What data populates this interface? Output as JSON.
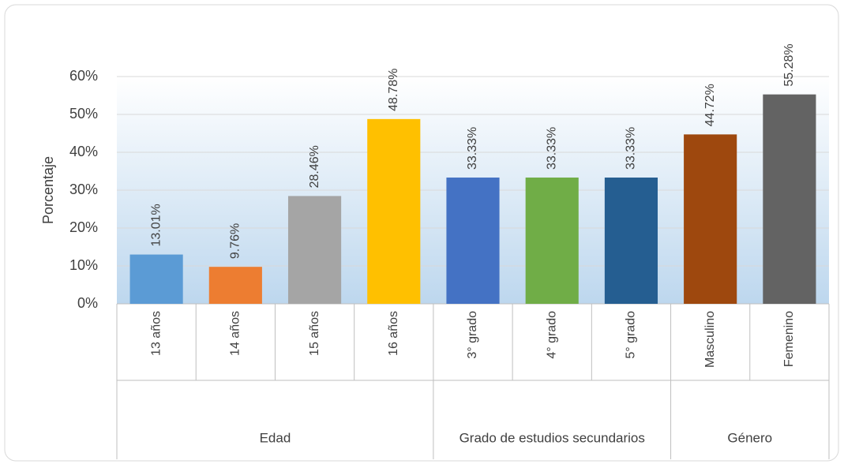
{
  "chart_data": {
    "type": "bar",
    "y_axis_label": "Porcentaje",
    "categories": [
      "13 años",
      "14 años",
      "15 años",
      "16 años",
      "3° grado",
      "4° grado",
      "5° grado",
      "Masculino",
      "Femenino"
    ],
    "groups": [
      {
        "name": "Edad",
        "size": 4
      },
      {
        "name": "Grado de estudios secundarios",
        "size": 3
      },
      {
        "name": "Género",
        "size": 2
      }
    ],
    "values": [
      13.01,
      9.76,
      28.46,
      48.78,
      33.33,
      33.33,
      33.33,
      44.72,
      55.28
    ],
    "value_labels": [
      "13.01%",
      "9.76%",
      "28.46%",
      "48.78%",
      "33.33%",
      "33.33%",
      "33.33%",
      "44.72%",
      "55.28%"
    ],
    "colors": [
      "#5b9bd5",
      "#ed7d31",
      "#a5a5a5",
      "#ffc000",
      "#4472c4",
      "#70ad47",
      "#255e91",
      "#9e480e",
      "#636363"
    ],
    "ylim": [
      0,
      60
    ],
    "yticks": [
      {
        "value": 0,
        "label": "0%"
      },
      {
        "value": 10,
        "label": "10%"
      },
      {
        "value": 20,
        "label": "20%"
      },
      {
        "value": 30,
        "label": "30%"
      },
      {
        "value": 40,
        "label": "40%"
      },
      {
        "value": 50,
        "label": "50%"
      },
      {
        "value": 60,
        "label": "60%"
      }
    ],
    "grid": true
  }
}
